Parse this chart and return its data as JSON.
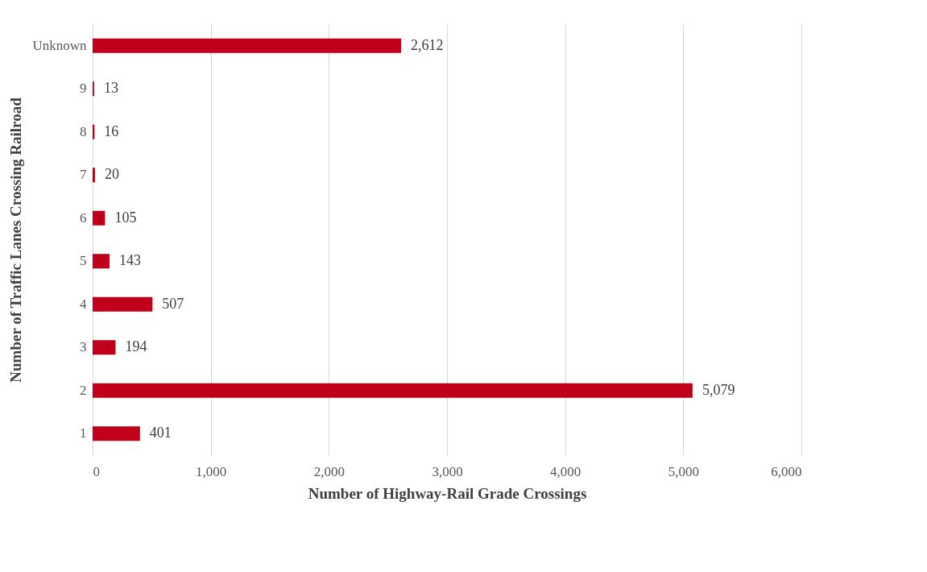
{
  "chart_data": {
    "type": "bar",
    "orientation": "horizontal",
    "xlabel": "Number of Highway-Rail Grade Crossings",
    "ylabel": "Number of Traffic Lanes Crossing Railroad",
    "categories": [
      "Unknown",
      "9",
      "8",
      "7",
      "6",
      "5",
      "4",
      "3",
      "2",
      "1"
    ],
    "values": [
      2612,
      13,
      16,
      20,
      105,
      143,
      507,
      194,
      5079,
      401
    ],
    "value_labels": [
      "2,612",
      "13",
      "16",
      "20",
      "105",
      "143",
      "507",
      "194",
      "5,079",
      "401"
    ],
    "color": "#c0001a",
    "xlim": [
      0,
      6000
    ],
    "xticks": [
      0,
      {
        "value": 1000,
        "label": "1,000"
      },
      {
        "value": 2000,
        "label": "2,000"
      },
      {
        "value": 3000,
        "label": "3,000"
      },
      {
        "value": 4000,
        "label": "4,000"
      },
      {
        "value": 5000,
        "label": "5,000"
      },
      {
        "value": 6000,
        "label": "6,000"
      }
    ],
    "grid": "x"
  }
}
